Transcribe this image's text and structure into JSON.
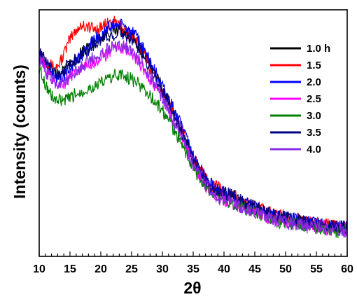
{
  "chart_data": {
    "type": "line",
    "title": "",
    "xlabel": "2θ",
    "ylabel": "Intensity (counts)",
    "xlim": [
      10,
      60
    ],
    "ylim": [
      0,
      100
    ],
    "y_ticks_labeled": false,
    "x_ticks": [
      10,
      15,
      20,
      25,
      30,
      35,
      40,
      45,
      50,
      55,
      60
    ],
    "grid": false,
    "legend_position": "top-right",
    "x": [
      10,
      11,
      12,
      13,
      14,
      15,
      16,
      17,
      18,
      19,
      20,
      21,
      22,
      23,
      24,
      25,
      26,
      27,
      28,
      29,
      30,
      31,
      32,
      33,
      34,
      35,
      36,
      37,
      38,
      39,
      40,
      41,
      42,
      43,
      44,
      45,
      46,
      47,
      48,
      49,
      50,
      51,
      52,
      53,
      54,
      55,
      56,
      57,
      58,
      59,
      60
    ],
    "series": [
      {
        "name": "1.0 h",
        "color": "#000000",
        "values": [
          82,
          78,
          75,
          73,
          75,
          78,
          80,
          83,
          85,
          87,
          89,
          91,
          92,
          92,
          91,
          89,
          86,
          82,
          78,
          73,
          68,
          63,
          58,
          52,
          46,
          40,
          35,
          31,
          28,
          27,
          25,
          24,
          23,
          21,
          20,
          19,
          18,
          17,
          16,
          16,
          15,
          15,
          14,
          14,
          13,
          13,
          13,
          12,
          12,
          12,
          11
        ]
      },
      {
        "name": "1.5",
        "color": "#ff0000",
        "values": [
          84,
          80,
          77,
          77,
          82,
          88,
          92,
          94,
          93,
          92,
          93,
          94,
          95,
          94,
          92,
          89,
          86,
          82,
          77,
          72,
          67,
          62,
          57,
          52,
          46,
          40,
          35,
          32,
          29,
          28,
          26,
          25,
          24,
          22,
          21,
          20,
          19,
          18,
          17,
          17,
          16,
          15,
          15,
          14,
          14,
          14,
          13,
          13,
          12,
          12,
          12
        ]
      },
      {
        "name": "2.0",
        "color": "#0000ff",
        "values": [
          82,
          78,
          75,
          72,
          73,
          76,
          79,
          82,
          85,
          88,
          90,
          92,
          94,
          94,
          93,
          91,
          88,
          84,
          79,
          74,
          69,
          64,
          59,
          53,
          47,
          41,
          36,
          32,
          29,
          27,
          26,
          25,
          23,
          22,
          21,
          20,
          19,
          18,
          17,
          16,
          16,
          15,
          15,
          14,
          14,
          13,
          13,
          13,
          12,
          12,
          12
        ]
      },
      {
        "name": "2.5",
        "color": "#ff00ff",
        "values": [
          81,
          76,
          72,
          70,
          70,
          72,
          74,
          76,
          78,
          79,
          80,
          82,
          84,
          85,
          84,
          82,
          79,
          76,
          72,
          68,
          64,
          59,
          54,
          49,
          43,
          38,
          33,
          29,
          26,
          25,
          23,
          22,
          21,
          20,
          19,
          18,
          17,
          16,
          15,
          15,
          14,
          14,
          13,
          13,
          12,
          12,
          12,
          11,
          11,
          11,
          10
        ]
      },
      {
        "name": "3.0",
        "color": "#008000",
        "values": [
          77,
          70,
          65,
          63,
          63,
          64,
          66,
          67,
          68,
          69,
          70,
          72,
          73,
          74,
          73,
          72,
          70,
          68,
          65,
          62,
          59,
          55,
          51,
          46,
          41,
          36,
          32,
          28,
          26,
          24,
          23,
          22,
          21,
          20,
          19,
          18,
          17,
          16,
          15,
          14,
          14,
          13,
          13,
          12,
          12,
          11,
          11,
          11,
          10,
          10,
          10
        ]
      },
      {
        "name": "3.5",
        "color": "#000080",
        "values": [
          83,
          79,
          76,
          74,
          76,
          78,
          80,
          82,
          84,
          86,
          88,
          89,
          90,
          91,
          90,
          88,
          85,
          81,
          77,
          72,
          67,
          62,
          57,
          51,
          45,
          40,
          35,
          31,
          28,
          27,
          26,
          25,
          24,
          22,
          21,
          20,
          19,
          18,
          17,
          16,
          16,
          15,
          15,
          14,
          14,
          13,
          13,
          13,
          12,
          12,
          12
        ]
      },
      {
        "name": "4.0",
        "color": "#8a2be2",
        "values": [
          80,
          75,
          72,
          70,
          71,
          73,
          75,
          77,
          79,
          81,
          82,
          84,
          85,
          86,
          85,
          83,
          80,
          77,
          73,
          69,
          64,
          59,
          54,
          49,
          43,
          37,
          33,
          29,
          26,
          24,
          23,
          22,
          21,
          20,
          19,
          18,
          17,
          16,
          15,
          14,
          14,
          13,
          13,
          12,
          12,
          12,
          11,
          11,
          11,
          10,
          10
        ]
      }
    ]
  }
}
